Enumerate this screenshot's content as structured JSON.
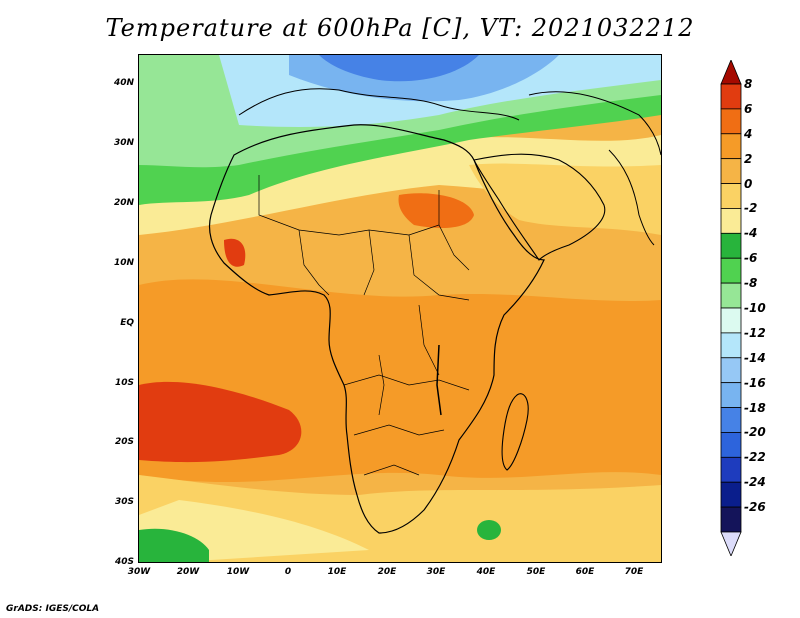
{
  "title": "Temperature at 600hPa [C], VT: 2021032212",
  "credit": "GrADS: IGES/COLA",
  "map": {
    "region": "Africa",
    "lat_labels": [
      "40N",
      "30N",
      "20N",
      "10N",
      "EQ",
      "10S",
      "20S",
      "30S",
      "40S"
    ],
    "lon_labels": [
      "30W",
      "20W",
      "10W",
      "0",
      "10E",
      "20E",
      "30E",
      "40E",
      "50E",
      "60E",
      "70E"
    ]
  },
  "colorbar": {
    "labels": [
      "8",
      "6",
      "4",
      "2",
      "0",
      "-2",
      "-4",
      "-6",
      "-8",
      "-10",
      "-12",
      "-14",
      "-16",
      "-18",
      "-20",
      "-22",
      "-24",
      "-26"
    ],
    "colors": [
      "#a50a00",
      "#e13c10",
      "#f06e14",
      "#f59b28",
      "#f5b446",
      "#fad264",
      "#faeb96",
      "#28b43c",
      "#50d250",
      "#96e696",
      "#dcfaf0",
      "#b4e6fa",
      "#96c8f5",
      "#78b4f0",
      "#4682e6",
      "#2d64dc",
      "#1e3cbe",
      "#0a1e8c",
      "#14145a",
      "#dcdcfa"
    ]
  }
}
